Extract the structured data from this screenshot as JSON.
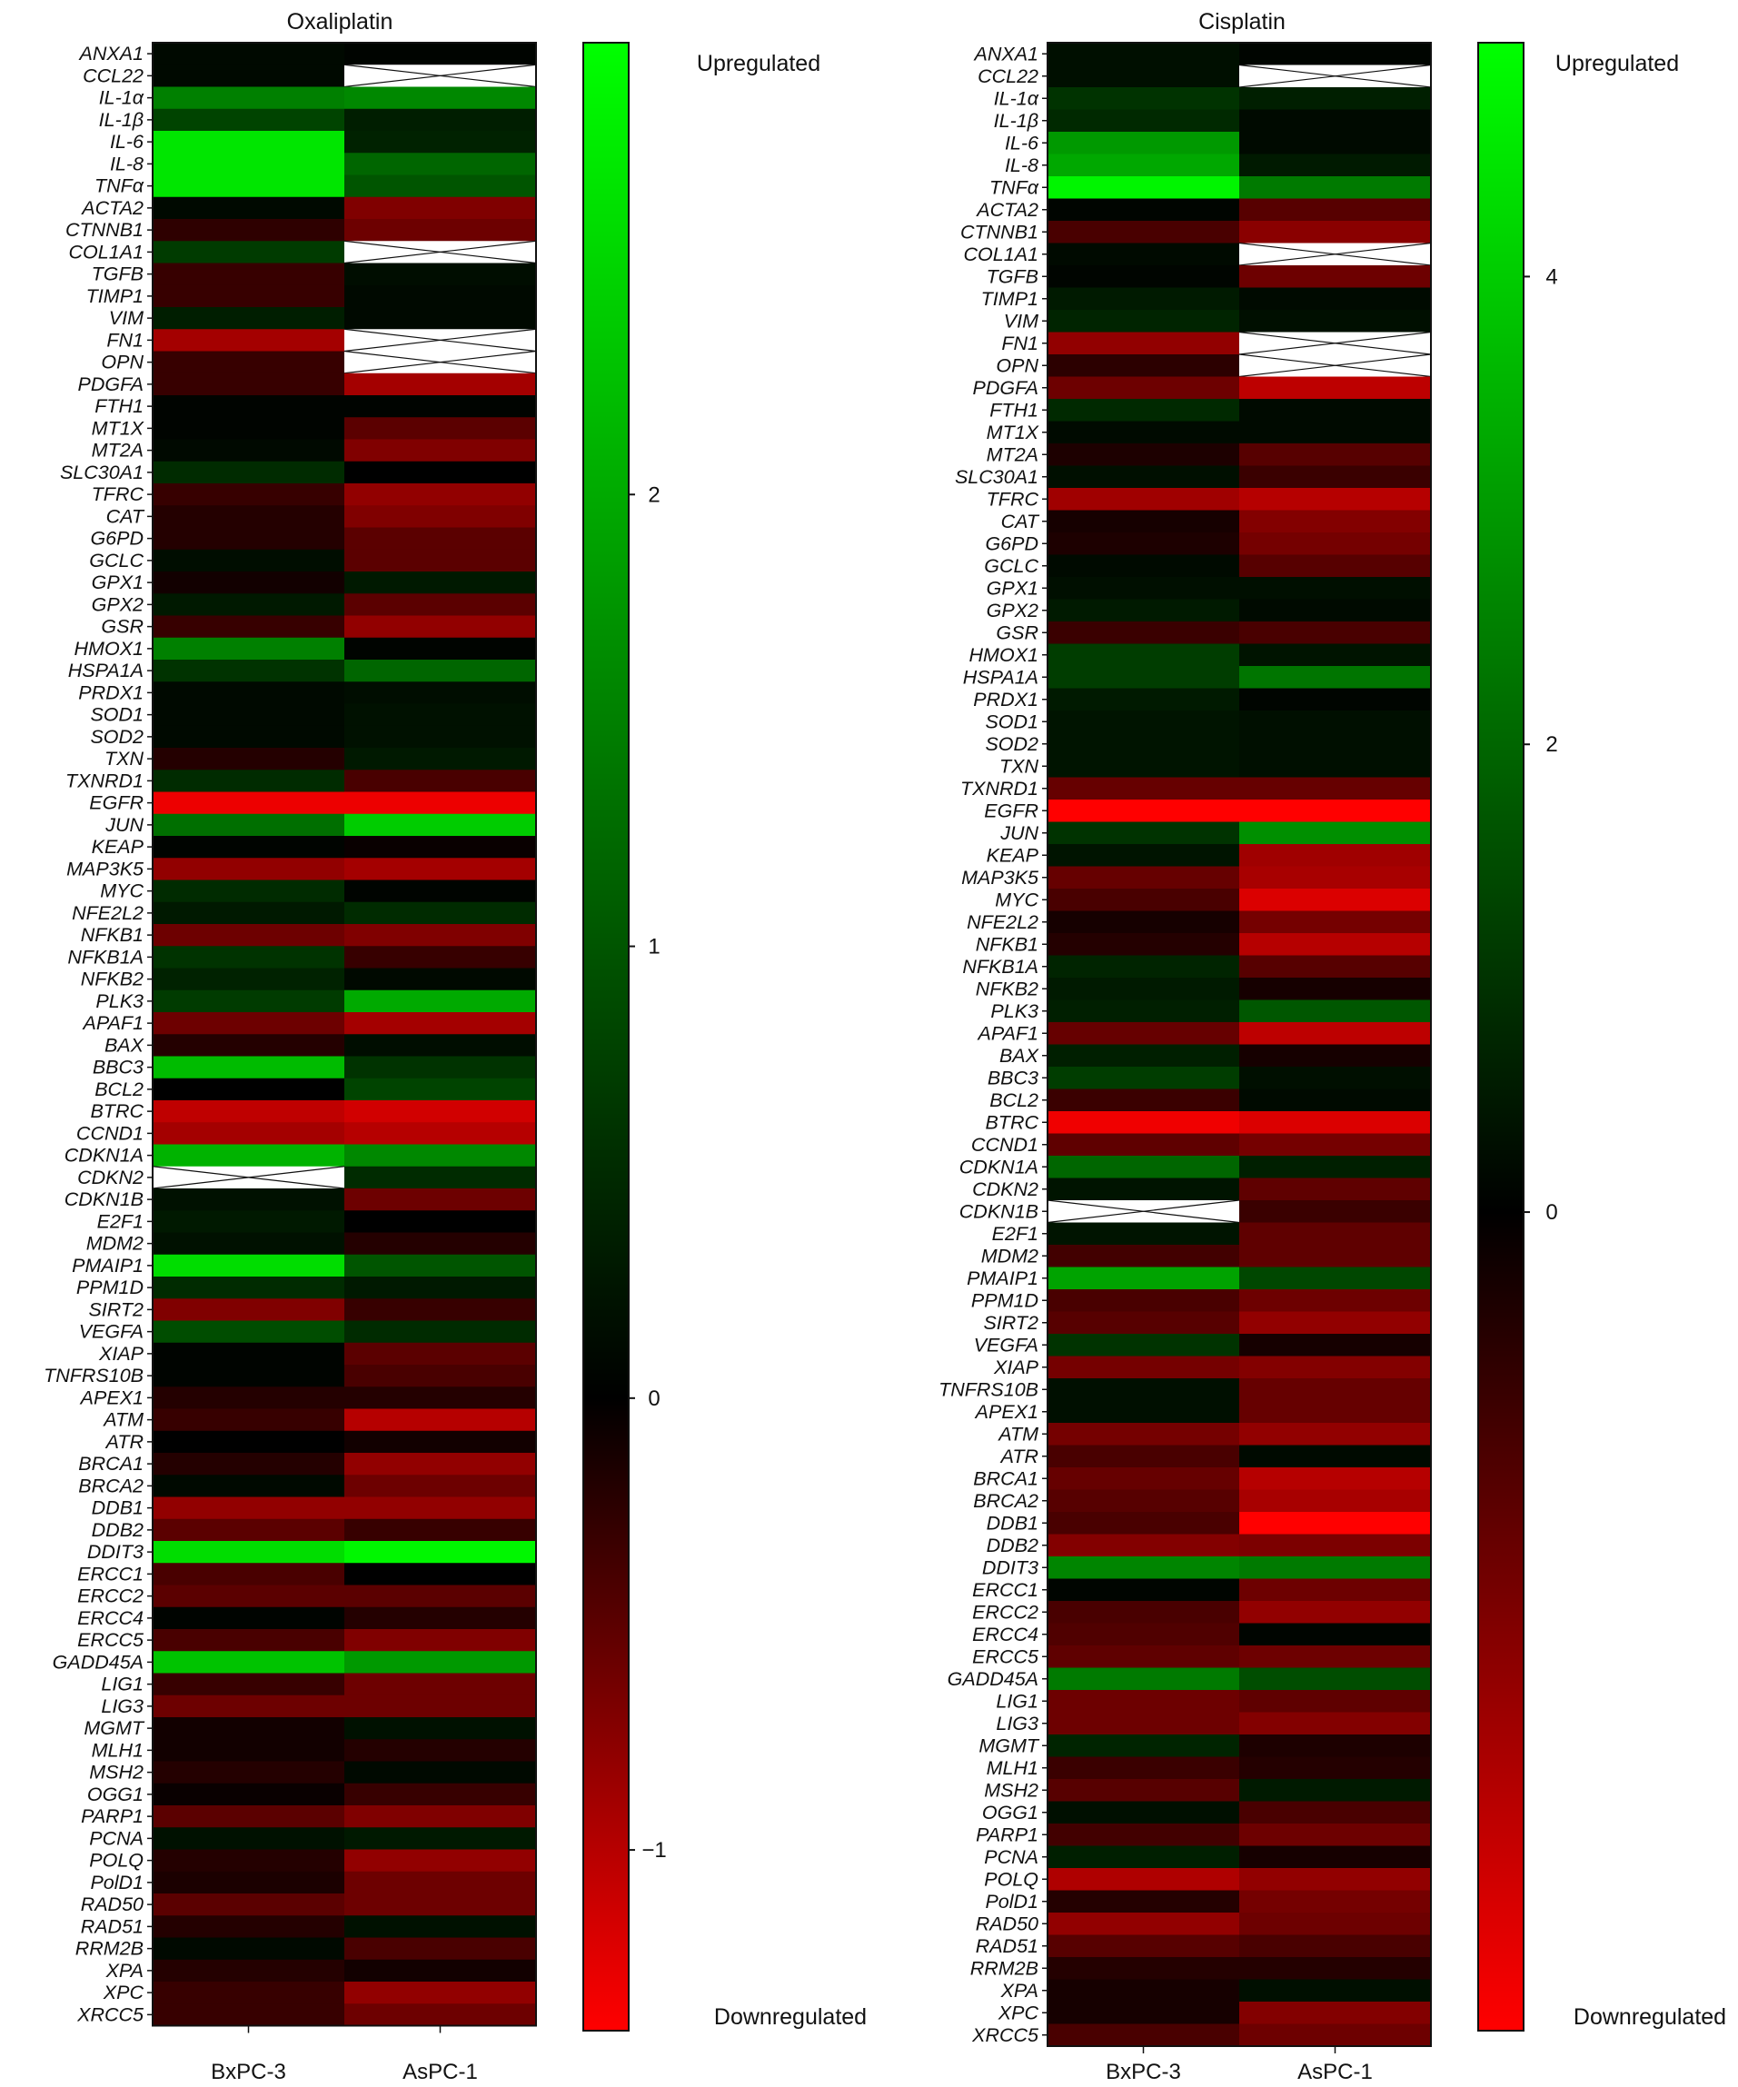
{
  "chart_data": [
    {
      "type": "heatmap",
      "title": "Oxaliplatin",
      "columns": [
        "BxPC-3",
        "AsPC-1"
      ],
      "rows": [
        "ANXA1",
        "CCL22",
        "IL-1α",
        "IL-1β",
        "IL-6",
        "IL-8",
        "TNFα",
        "ACTA2",
        "CTNNB1",
        "COL1A1",
        "TGFB",
        "TIMP1",
        "VIM",
        "FN1",
        "OPN",
        "PDGFA",
        "FTH1",
        "MT1X",
        "MT2A",
        "SLC30A1",
        "TFRC",
        "CAT",
        "G6PD",
        "GCLC",
        "GPX1",
        "GPX2",
        "GSR",
        "HMOX1",
        "HSPA1A",
        "PRDX1",
        "SOD1",
        "SOD2",
        "TXN",
        "TXNRD1",
        "EGFR",
        "JUN",
        "KEAP",
        "MAP3K5",
        "MYC",
        "NFE2L2",
        "NFKB1",
        "NFKB1A",
        "NFKB2",
        "PLK3",
        "APAF1",
        "BAX",
        "BBC3",
        "BCL2",
        "BTRC",
        "CCND1",
        "CDKN1A",
        "CDKN2",
        "CDKN1B",
        "E2F1",
        "MDM2",
        "PMAIP1",
        "PPM1D",
        "SIRT2",
        "VEGFA",
        "XIAP",
        "TNFRS10B",
        "APEX1",
        "ATM",
        "ATR",
        "BRCA1",
        "BRCA2",
        "DDB1",
        "DDB2",
        "DDIT3",
        "ERCC1",
        "ERCC2",
        "ERCC4",
        "ERCC5",
        "GADD45A",
        "LIG1",
        "LIG3",
        "MGMT",
        "MLH1",
        "MSH2",
        "OGG1",
        "PARP1",
        "PCNA",
        "POLQ",
        "PolD1",
        "RAD50",
        "RAD51",
        "RRM2B",
        "XPA",
        "XPC",
        "XRCC5"
      ],
      "values": [
        [
          0.1,
          0.05
        ],
        [
          0.1,
          null
        ],
        [
          1.5,
          1.6
        ],
        [
          0.8,
          0.35
        ],
        [
          2.7,
          0.4
        ],
        [
          2.7,
          1.2
        ],
        [
          2.7,
          1.0
        ],
        [
          0.1,
          -0.7
        ],
        [
          -0.25,
          -0.6
        ],
        [
          0.7,
          null
        ],
        [
          -0.3,
          0.15
        ],
        [
          -0.3,
          0.1
        ],
        [
          0.35,
          0.1
        ],
        [
          -0.9,
          null
        ],
        [
          -0.3,
          null
        ],
        [
          -0.3,
          -0.9
        ],
        [
          0.05,
          0.05
        ],
        [
          0.05,
          -0.5
        ],
        [
          0.1,
          -0.7
        ],
        [
          0.5,
          0.0
        ],
        [
          -0.3,
          -0.8
        ],
        [
          -0.2,
          -0.7
        ],
        [
          -0.2,
          -0.5
        ],
        [
          0.15,
          -0.5
        ],
        [
          -0.1,
          0.3
        ],
        [
          0.3,
          -0.5
        ],
        [
          -0.3,
          -0.8
        ],
        [
          1.5,
          0.05
        ],
        [
          0.6,
          1.2
        ],
        [
          0.1,
          0.15
        ],
        [
          0.1,
          0.2
        ],
        [
          0.1,
          0.2
        ],
        [
          -0.2,
          0.3
        ],
        [
          0.5,
          -0.4
        ],
        [
          -1.3,
          -1.3
        ],
        [
          1.3,
          2.4
        ],
        [
          0.05,
          -0.05
        ],
        [
          -0.8,
          -0.9
        ],
        [
          0.5,
          0.05
        ],
        [
          0.3,
          0.5
        ],
        [
          -0.6,
          -0.7
        ],
        [
          0.6,
          -0.3
        ],
        [
          0.4,
          0.1
        ],
        [
          0.7,
          2.0
        ],
        [
          -0.6,
          -0.9
        ],
        [
          -0.2,
          0.15
        ],
        [
          2.2,
          0.6
        ],
        [
          0.0,
          0.8
        ],
        [
          -1.05,
          -1.15
        ],
        [
          -0.9,
          -1.0
        ],
        [
          2.1,
          1.6
        ],
        [
          null,
          0.5
        ],
        [
          0.2,
          -0.6
        ],
        [
          0.3,
          0.0
        ],
        [
          0.2,
          -0.2
        ],
        [
          2.6,
          1.0
        ],
        [
          0.5,
          0.3
        ],
        [
          -0.7,
          -0.3
        ],
        [
          0.9,
          0.5
        ],
        [
          0.05,
          -0.5
        ],
        [
          0.05,
          -0.4
        ],
        [
          -0.2,
          -0.2
        ],
        [
          -0.3,
          -1.0
        ],
        [
          0.0,
          -0.1
        ],
        [
          -0.2,
          -0.8
        ],
        [
          0.1,
          -0.6
        ],
        [
          -0.8,
          -0.8
        ],
        [
          -0.5,
          -0.3
        ],
        [
          2.6,
          2.9
        ],
        [
          -0.4,
          0.0
        ],
        [
          -0.5,
          -0.5
        ],
        [
          0.05,
          -0.2
        ],
        [
          -0.4,
          -0.7
        ],
        [
          2.3,
          1.8
        ],
        [
          -0.3,
          -0.6
        ],
        [
          -0.6,
          -0.6
        ],
        [
          -0.1,
          0.2
        ],
        [
          -0.1,
          -0.2
        ],
        [
          -0.2,
          0.1
        ],
        [
          -0.05,
          -0.3
        ],
        [
          -0.5,
          -0.7
        ],
        [
          0.2,
          0.3
        ],
        [
          -0.2,
          -0.8
        ],
        [
          -0.15,
          -0.6
        ],
        [
          -0.5,
          -0.6
        ],
        [
          -0.2,
          0.2
        ],
        [
          0.1,
          -0.4
        ],
        [
          -0.2,
          -0.1
        ],
        [
          -0.3,
          -0.8
        ],
        [
          -0.3,
          -0.6
        ]
      ],
      "missing_cells_marked_with_x": true,
      "colorbar": {
        "min": -1.4,
        "max": 3.0,
        "ticks": [
          -1,
          0,
          1,
          2
        ],
        "tick_labels": [
          "−1",
          "0",
          "1",
          "2"
        ],
        "top_label": "Upregulated",
        "bottom_label": "Downregulated"
      },
      "color_scale": {
        "negative": "#ff0000",
        "zero": "#000000",
        "positive": "#00ff00"
      }
    },
    {
      "type": "heatmap",
      "title": "Cisplatin",
      "columns": [
        "BxPC-3",
        "AsPC-1"
      ],
      "rows": [
        "ANXA1",
        "CCL22",
        "IL-1α",
        "IL-1β",
        "IL-6",
        "IL-8",
        "TNFα",
        "ACTA2",
        "CTNNB1",
        "COL1A1",
        "TGFB",
        "TIMP1",
        "VIM",
        "FN1",
        "OPN",
        "PDGFA",
        "FTH1",
        "MT1X",
        "MT2A",
        "SLC30A1",
        "TFRC",
        "CAT",
        "G6PD",
        "GCLC",
        "GPX1",
        "GPX2",
        "GSR",
        "HMOX1",
        "HSPA1A",
        "PRDX1",
        "SOD1",
        "SOD2",
        "TXN",
        "TXNRD1",
        "EGFR",
        "JUN",
        "KEAP",
        "MAP3K5",
        "MYC",
        "NFE2L2",
        "NFKB1",
        "NFKB1A",
        "NFKB2",
        "PLK3",
        "APAF1",
        "BAX",
        "BBC3",
        "BCL2",
        "BTRC",
        "CCND1",
        "CDKN1A",
        "CDKN2",
        "CDKN1B",
        "E2F1",
        "MDM2",
        "PMAIP1",
        "PPM1D",
        "SIRT2",
        "VEGFA",
        "XIAP",
        "TNFRS10B",
        "APEX1",
        "ATM",
        "ATR",
        "BRCA1",
        "BRCA2",
        "DDB1",
        "DDB2",
        "DDIT3",
        "ERCC1",
        "ERCC2",
        "ERCC4",
        "ERCC5",
        "GADD45A",
        "LIG1",
        "LIG3",
        "MGMT",
        "MLH1",
        "MSH2",
        "OGG1",
        "PARP1",
        "PCNA",
        "POLQ",
        "PolD1",
        "RAD50",
        "RAD51",
        "RRM2B",
        "XPA",
        "XPC",
        "XRCC5"
      ],
      "values": [
        [
          0.3,
          0.1
        ],
        [
          0.3,
          null
        ],
        [
          1.0,
          0.6
        ],
        [
          0.8,
          0.2
        ],
        [
          3.0,
          0.2
        ],
        [
          3.3,
          0.5
        ],
        [
          4.8,
          2.4
        ],
        [
          0.1,
          -1.2
        ],
        [
          -1.0,
          -1.9
        ],
        [
          0.2,
          null
        ],
        [
          0.1,
          -1.5
        ],
        [
          0.5,
          0.2
        ],
        [
          0.7,
          0.3
        ],
        [
          -2.0,
          null
        ],
        [
          -0.6,
          null
        ],
        [
          -1.5,
          -2.6
        ],
        [
          0.8,
          0.2
        ],
        [
          0.2,
          0.2
        ],
        [
          -0.4,
          -1.2
        ],
        [
          0.3,
          -0.8
        ],
        [
          -2.2,
          -2.5
        ],
        [
          -0.3,
          -1.8
        ],
        [
          -0.4,
          -1.6
        ],
        [
          0.2,
          -1.2
        ],
        [
          0.3,
          0.3
        ],
        [
          0.5,
          0.2
        ],
        [
          -0.8,
          -1.0
        ],
        [
          1.2,
          0.4
        ],
        [
          1.2,
          2.3
        ],
        [
          0.5,
          0.1
        ],
        [
          0.4,
          0.3
        ],
        [
          0.4,
          0.3
        ],
        [
          0.4,
          0.3
        ],
        [
          -1.4,
          -1.4
        ],
        [
          -3.5,
          -3.5
        ],
        [
          1.0,
          2.8
        ],
        [
          0.4,
          -2.2
        ],
        [
          -1.4,
          -2.3
        ],
        [
          -1.0,
          -3.0
        ],
        [
          -0.3,
          -1.6
        ],
        [
          -0.5,
          -2.5
        ],
        [
          0.7,
          -1.2
        ],
        [
          0.5,
          -0.3
        ],
        [
          0.6,
          1.7
        ],
        [
          -1.4,
          -2.6
        ],
        [
          0.6,
          -0.3
        ],
        [
          1.2,
          0.3
        ],
        [
          -0.8,
          0.2
        ],
        [
          -3.3,
          -3.0
        ],
        [
          -1.3,
          -1.6
        ],
        [
          2.0,
          0.6
        ],
        [
          0.4,
          -1.3
        ],
        [
          null,
          -0.8
        ],
        [
          0.4,
          -1.3
        ],
        [
          -0.9,
          -1.3
        ],
        [
          3.2,
          1.4
        ],
        [
          -1.0,
          -1.5
        ],
        [
          -1.2,
          -2.0
        ],
        [
          1.0,
          -0.3
        ],
        [
          -1.6,
          -1.8
        ],
        [
          0.3,
          -1.4
        ],
        [
          0.3,
          -1.4
        ],
        [
          -1.6,
          -2.0
        ],
        [
          -1.0,
          0.2
        ],
        [
          -1.4,
          -2.5
        ],
        [
          -1.2,
          -2.3
        ],
        [
          -1.0,
          -4.0
        ],
        [
          -1.8,
          -1.7
        ],
        [
          2.6,
          2.4
        ],
        [
          0.1,
          -1.5
        ],
        [
          -1.0,
          -2.0
        ],
        [
          -1.1,
          0.1
        ],
        [
          -1.3,
          -1.5
        ],
        [
          2.4,
          1.5
        ],
        [
          -1.5,
          -1.3
        ],
        [
          -1.5,
          -1.8
        ],
        [
          0.7,
          -0.4
        ],
        [
          -0.8,
          -0.5
        ],
        [
          -1.2,
          0.5
        ],
        [
          0.3,
          -1.0
        ],
        [
          -0.9,
          -1.5
        ],
        [
          0.6,
          -0.3
        ],
        [
          -2.4,
          -2.0
        ],
        [
          -0.5,
          -1.6
        ],
        [
          -2.0,
          -1.5
        ],
        [
          -1.2,
          -1.0
        ],
        [
          -0.5,
          -0.5
        ],
        [
          -0.3,
          0.3
        ],
        [
          -0.3,
          -1.8
        ],
        [
          -1.0,
          -1.5
        ]
      ],
      "missing_cells_marked_with_x": true,
      "colorbar": {
        "min": -3.5,
        "max": 5.0,
        "ticks": [
          0,
          2,
          4
        ],
        "tick_labels": [
          "0",
          "2",
          "4"
        ],
        "top_label": "Upregulated",
        "bottom_label": "Downregulated"
      },
      "color_scale": {
        "negative": "#ff0000",
        "zero": "#000000",
        "positive": "#00ff00"
      }
    }
  ]
}
